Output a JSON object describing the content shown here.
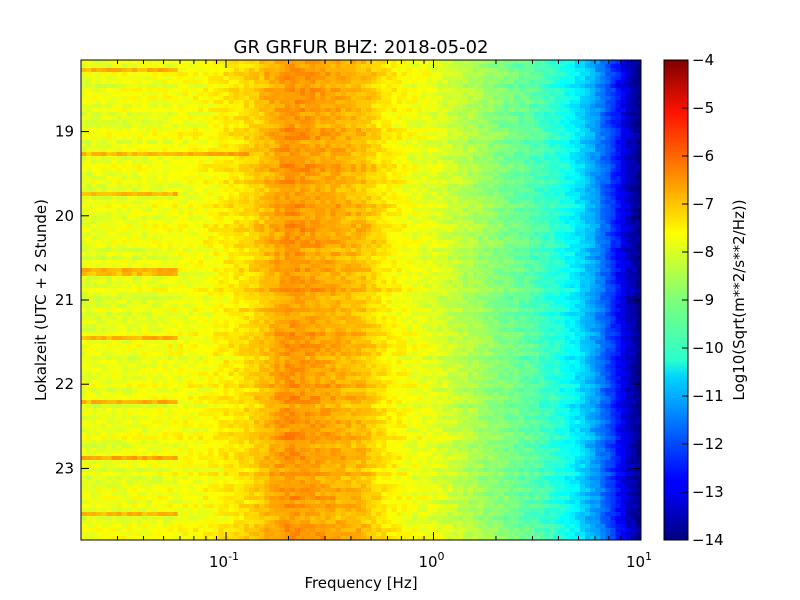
{
  "chart_data": {
    "type": "heatmap",
    "title": "GR GRFUR BHZ: 2018-05-02",
    "xlabel": "Frequency [Hz]",
    "ylabel": "Lokalzeit (UTC + 2 Stunde)",
    "x_scale": "log",
    "xlim": [
      0.02,
      10
    ],
    "ylim": [
      18.15,
      23.85
    ],
    "x_ticks": [
      {
        "base": "10",
        "exp": "-1",
        "value": 0.1
      },
      {
        "base": "10",
        "exp": "0",
        "value": 1
      },
      {
        "base": "10",
        "exp": "1",
        "value": 10
      }
    ],
    "y_ticks": [
      {
        "label": "19",
        "value": 19
      },
      {
        "label": "20",
        "value": 20
      },
      {
        "label": "21",
        "value": 21
      },
      {
        "label": "22",
        "value": 22
      },
      {
        "label": "23",
        "value": 23
      }
    ],
    "colorbar": {
      "label": "Log10(Sqrt(m**2/s**2/Hz))",
      "min": -14,
      "max": -4,
      "colormap": "jet",
      "ticks": [
        "-4",
        "-5",
        "-6",
        "-7",
        "-8",
        "-9",
        "-10",
        "-11",
        "-12",
        "-13",
        "-14"
      ]
    },
    "spectrum_profile": {
      "frequency_hz": [
        0.02,
        0.05,
        0.08,
        0.13,
        0.2,
        0.3,
        0.45,
        0.6,
        0.8,
        1.0,
        1.5,
        2,
        3,
        4,
        5,
        6,
        7,
        8,
        9,
        10
      ],
      "log10_amplitude": [
        -8.0,
        -7.9,
        -7.8,
        -7.4,
        -6.7,
        -6.9,
        -7.1,
        -7.6,
        -7.9,
        -8.0,
        -8.5,
        -8.9,
        -9.4,
        -9.9,
        -10.5,
        -11.2,
        -12.0,
        -12.8,
        -13.5,
        -13.9
      ]
    },
    "highlighted_rows": [
      {
        "time": 18.27,
        "max_freq_hz": 0.06
      },
      {
        "time": 19.28,
        "max_freq_hz": 0.13
      },
      {
        "time": 19.75,
        "max_freq_hz": 0.06
      },
      {
        "time": 20.67,
        "max_freq_hz": 0.06
      },
      {
        "time": 21.45,
        "max_freq_hz": 0.06
      },
      {
        "time": 22.2,
        "max_freq_hz": 0.06
      },
      {
        "time": 22.88,
        "max_freq_hz": 0.06
      },
      {
        "time": 23.55,
        "max_freq_hz": 0.06
      }
    ]
  }
}
